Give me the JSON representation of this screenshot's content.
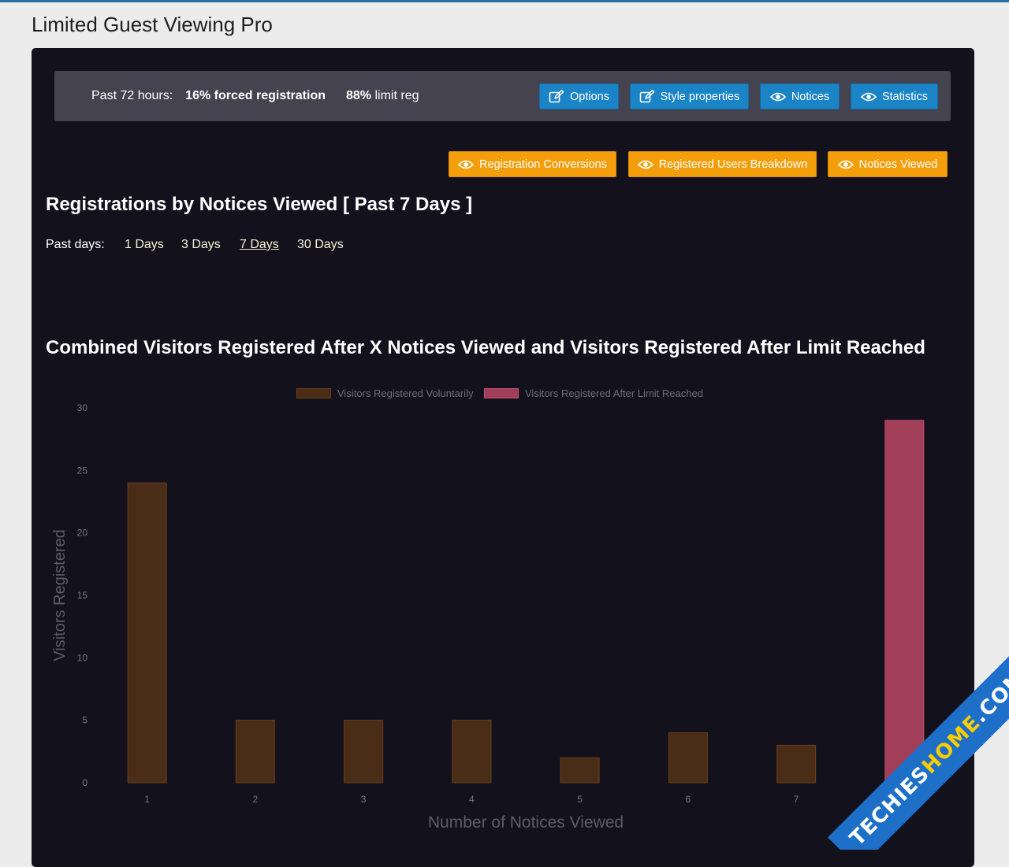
{
  "app": {
    "title": "Limited Guest Viewing Pro"
  },
  "stats": {
    "prefix": "Past 72 hours:",
    "forced": "16% forced registration",
    "limit_value": "88%",
    "limit_label": "limit reg"
  },
  "top_buttons": {
    "options": "Options",
    "style_properties": "Style properties",
    "notices": "Notices",
    "statistics": "Statistics"
  },
  "report_buttons": {
    "registration_conversions": "Registration Conversions",
    "registered_users_breakdown": "Registered Users Breakdown",
    "notices_viewed": "Notices Viewed"
  },
  "report": {
    "title": "Registrations by Notices Viewed [ Past 7 Days ]",
    "past_days_label": "Past days:",
    "day_options": [
      "1 Days",
      "3 Days",
      "7 Days",
      "30 Days"
    ],
    "selected_day": "7 Days"
  },
  "colors": {
    "voluntary": "#4a2d17",
    "voluntary_border": "#6b3f1c",
    "limit": "#a23f58",
    "limit_border": "#c44f6c"
  },
  "watermark": {
    "text_main": "TECHIES",
    "text_accent": "HOME",
    "text_suffix": ".COM"
  },
  "chart_data": {
    "type": "bar",
    "title": "Combined Visitors Registered After X Notices Viewed and Visitors Registered After Limit Reached",
    "xlabel": "Number of Notices Viewed",
    "ylabel": "Visitors Registered",
    "categories": [
      "1",
      "2",
      "3",
      "4",
      "5",
      "6",
      "7",
      ""
    ],
    "ylim": [
      0,
      30
    ],
    "yticks": [
      0,
      5,
      10,
      15,
      20,
      25,
      30
    ],
    "grid": false,
    "legend_position": "top",
    "series": [
      {
        "name": "Visitors Registered Voluntarily",
        "values": [
          24,
          5,
          5,
          5,
          2,
          4,
          3,
          0
        ]
      },
      {
        "name": "Visitors Registered After Limit Reached",
        "values": [
          0,
          0,
          0,
          0,
          0,
          0,
          0,
          29
        ]
      }
    ]
  }
}
